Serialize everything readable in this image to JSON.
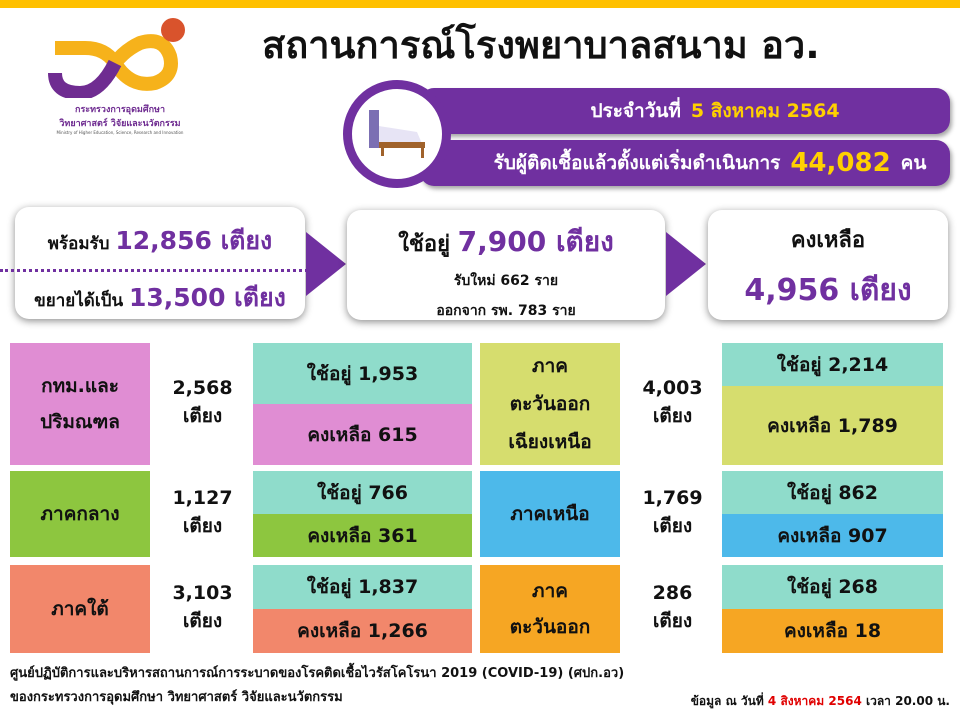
{
  "header": {
    "title": "สถานการณ์โรงพยาบาลสนาม อว.",
    "logo_text_th1": "กระทรวงการอุดมศึกษา",
    "logo_text_th2": "วิทยาศาสตร์ วิจัยและนวัตกรรม",
    "logo_text_en": "Ministry of Higher Education, Science, Research and Innovation"
  },
  "banner": {
    "date_label": "ประจำวันที่",
    "date_value": "5 สิงหาคม 2564",
    "total_label": "รับผู้ติดเชื้อแล้วตั้งแต่เริ่มดำเนินการ",
    "total_value": "44,082",
    "total_unit": "คน"
  },
  "summary": {
    "ready_label": "พร้อมรับ",
    "ready_value": "12,856 เตียง",
    "expand_label": "ขยายได้เป็น",
    "expand_value": "13,500 เตียง",
    "used_label": "ใช้อยู่",
    "used_value": "7,900 เตียง",
    "new_text": "รับใหม่  662  ราย",
    "discharged_text": "ออกจาก รพ. 783 ราย",
    "remain_label": "คงเหลือ",
    "remain_value": "4,956 เตียง"
  },
  "regions": [
    {
      "name1": "กทม.และ",
      "name2": "ปริมณฑล",
      "count": "2,568",
      "unit": "เตียง",
      "used": "ใช้อยู่  1,953",
      "remain": "คงเหลือ  615",
      "color": "#e08dd3",
      "remain_color": "#e08dd3"
    },
    {
      "name1": "ภาค",
      "name2": "ตะวันออก",
      "name3": "เฉียงเหนือ",
      "count": "4,003",
      "unit": "เตียง",
      "used": "ใช้อยู่   2,214",
      "remain": "คงเหลือ  1,789",
      "color": "#d6dd6e",
      "remain_color": "#d6dd6e"
    },
    {
      "name1": "ภาคกลาง",
      "count": "1,127",
      "unit": "เตียง",
      "used": "ใช้อยู่  766",
      "remain": "คงเหลือ  361",
      "color": "#8dc63f",
      "remain_color": "#8dc63f"
    },
    {
      "name1": "ภาคเหนือ",
      "count": "1,769",
      "unit": "เตียง",
      "used": "ใช้อยู่  862",
      "remain": "คงเหลือ  907",
      "color": "#4db9ea",
      "remain_color": "#4db9ea"
    },
    {
      "name1": "ภาคใต้",
      "count": "3,103",
      "unit": "เตียง",
      "used": "ใช้อยู่  1,837",
      "remain": "คงเหลือ 1,266",
      "color": "#f2876b",
      "remain_color": "#f2876b"
    },
    {
      "name1": "ภาค",
      "name2": "ตะวันออก",
      "count": "286",
      "unit": "เตียง",
      "used": "ใช้อยู่  268",
      "remain": "คงเหลือ  18",
      "color": "#f6a623",
      "remain_color": "#f6a623"
    }
  ],
  "used_color": "#8fdccb",
  "footer": {
    "line1": "ศูนย์ปฏิบัติการและบริหารสถานการณ์การระบาดของโรคติดเชื้อไวรัสโคโรนา  2019 (COVID-19) (ศปก.อว)",
    "line2": "ของกระทรวงการอุดมศึกษา  วิทยาศาสตร์ วิจัยและนวัตกรรม",
    "asof_label": "ข้อมูล ณ วันที่",
    "asof_date": "4 สิงหาคม 2564",
    "asof_time": "เวลา  20.00 น."
  }
}
